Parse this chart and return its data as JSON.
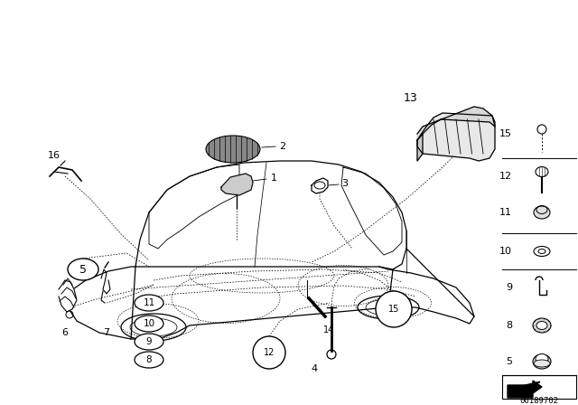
{
  "bg_color": "#ffffff",
  "diagram_id": "00189702",
  "car_color": "#000000",
  "label_fs": 8,
  "small_label_fs": 7
}
